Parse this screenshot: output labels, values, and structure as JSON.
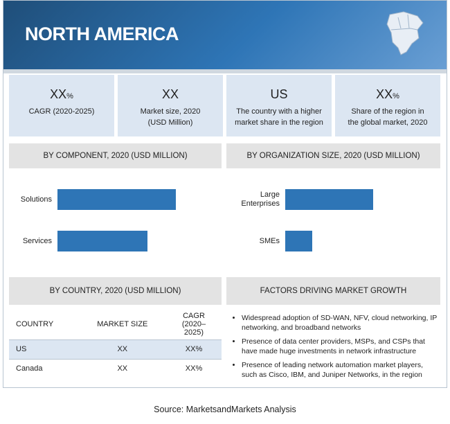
{
  "header": {
    "title": "NORTH AMERICA"
  },
  "kpis": [
    {
      "value": "XX",
      "unit": "%",
      "label": [
        "CAGR (2020-2025)"
      ]
    },
    {
      "value": "XX",
      "label": [
        "Market size, 2020",
        "(USD Million)"
      ]
    },
    {
      "value": "US",
      "label": [
        "The country with a higher",
        "market share in the region"
      ]
    },
    {
      "value": "XX",
      "unit": "%",
      "label": [
        "Share of the region in",
        "the global market, 2020"
      ]
    }
  ],
  "chart_data": [
    {
      "type": "bar",
      "orientation": "horizontal",
      "title": "BY COMPONENT,  2020 (USD MILLION)",
      "categories": [
        "Solutions",
        "Services"
      ],
      "values": [
        72,
        55
      ],
      "color": "#2e75b6",
      "xlim": [
        0,
        100
      ]
    },
    {
      "type": "bar",
      "orientation": "horizontal",
      "title": "BY ORGANIZATION  SIZE, 2020 (USD MILLION)",
      "categories": [
        "Large Enterprises",
        "SMEs"
      ],
      "values": [
        59,
        18
      ],
      "color": "#2e75b6",
      "xlim": [
        0,
        100
      ]
    }
  ],
  "country_table": {
    "title": "BY COUNTRY,  2020 (USD MILLION)",
    "columns": [
      "COUNTRY",
      "MARKET SIZE",
      "CAGR (2020–2025)"
    ],
    "rows": [
      [
        "US",
        "XX",
        "XX%"
      ],
      [
        "Canada",
        "XX",
        "XX%"
      ]
    ]
  },
  "factors": {
    "title": "FACTORS DRIVING MARKET GROWTH",
    "items": [
      "Widespread adoption of SD-WAN, NFV, cloud networking, IP networking, and broadband networks",
      "Presence of data center providers, MSPs, and CSPs that have made huge investments in network infrastructure",
      "Presence of leading network automation market players, such as Cisco, IBM, and Juniper Networks, in the region"
    ]
  },
  "source": "Source: MarketsandMarkets Analysis"
}
